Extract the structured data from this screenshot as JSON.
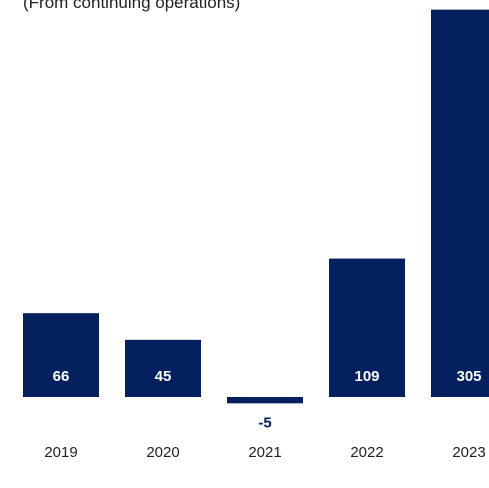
{
  "chart_data": {
    "type": "bar",
    "subtitle": "(From continuing operations)",
    "categories": [
      "2019",
      "2020",
      "2021",
      "2022",
      "2023"
    ],
    "values": [
      66,
      45,
      -5,
      109,
      305
    ],
    "value_labels": [
      "66",
      "45",
      "-5",
      "109",
      "305"
    ],
    "ylim": [
      -5,
      305
    ],
    "grid": false,
    "legend": "none",
    "colors": {
      "bar": "#04205f",
      "label_inside": "#ffffff",
      "label_outside": "#04205f"
    }
  }
}
